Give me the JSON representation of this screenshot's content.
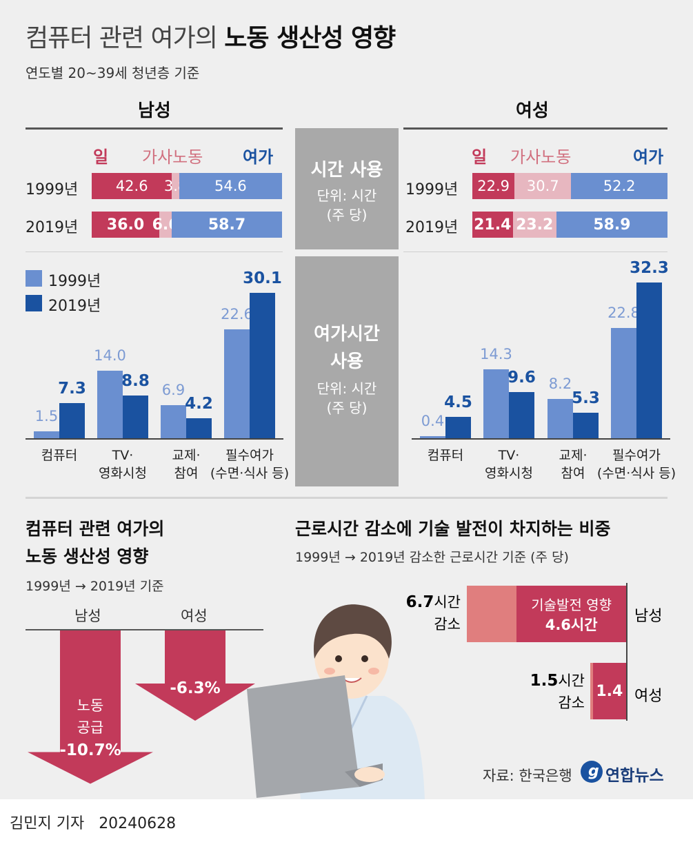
{
  "header": {
    "title_light": "컴퓨터 관련 여가의 ",
    "title_bold": "노동 생산성 영향",
    "subtitle": "연도별 20~39세 청년층 기준"
  },
  "columns": {
    "male": "남성",
    "female": "여성"
  },
  "bands": {
    "time_title": "시간 사용",
    "time_unit1": "단위: 시간",
    "time_unit2": "(주 당)",
    "leisure_title1": "여가시간",
    "leisure_title2": "사용",
    "leisure_unit1": "단위: 시간",
    "leisure_unit2": "(주 당)"
  },
  "colors": {
    "work": "#c23a5a",
    "housework": "#e7b7c0",
    "leisure": "#6a8fd0",
    "y1999": "#6a8fd0",
    "y2019": "#1a52a0",
    "arrow": "#c23a5a",
    "tech": "#c23a5a",
    "tech_rest": "#e07e7e"
  },
  "chart_data": [
    {
      "type": "bar",
      "stacked": true,
      "orientation": "horizontal",
      "panel": "남성",
      "legend": [
        "일",
        "가사노동",
        "여가"
      ],
      "categories": [
        "1999년",
        "2019년"
      ],
      "series": [
        {
          "name": "일",
          "values": [
            42.6,
            36.0
          ]
        },
        {
          "name": "가사노동",
          "values": [
            3.8,
            6.6
          ]
        },
        {
          "name": "여가",
          "values": [
            54.6,
            58.7
          ]
        }
      ]
    },
    {
      "type": "bar",
      "stacked": true,
      "orientation": "horizontal",
      "panel": "여성",
      "legend": [
        "일",
        "가사노동",
        "여가"
      ],
      "categories": [
        "1999년",
        "2019년"
      ],
      "series": [
        {
          "name": "일",
          "values": [
            22.9,
            21.4
          ]
        },
        {
          "name": "가사노동",
          "values": [
            30.7,
            23.2
          ]
        },
        {
          "name": "여가",
          "values": [
            52.2,
            58.9
          ]
        }
      ]
    },
    {
      "type": "bar",
      "panel": "남성",
      "categories": [
        "컴퓨터",
        "TV·\n영화시청",
        "교제·\n참여",
        "필수여가\n(수면·식사 등)"
      ],
      "series": [
        {
          "name": "1999년",
          "values": [
            1.5,
            14.0,
            6.9,
            22.6
          ],
          "labels": [
            "1.5",
            "14.0",
            "6.9",
            "22.6"
          ]
        },
        {
          "name": "2019년",
          "values": [
            7.3,
            8.8,
            4.2,
            30.1
          ],
          "labels": [
            "7.3",
            "8.8",
            "4.2",
            "30.1"
          ]
        }
      ]
    },
    {
      "type": "bar",
      "panel": "여성",
      "categories": [
        "컴퓨터",
        "TV·\n영화시청",
        "교제·\n참여",
        "필수여가\n(수면·식사 등)"
      ],
      "series": [
        {
          "name": "1999년",
          "values": [
            0.4,
            14.3,
            8.2,
            22.8
          ],
          "labels": [
            "0.4",
            "14.3",
            "8.2",
            "22.8"
          ]
        },
        {
          "name": "2019년",
          "values": [
            4.5,
            9.6,
            5.3,
            32.3
          ],
          "labels": [
            "4.5",
            "9.6",
            "5.3",
            "32.3"
          ]
        }
      ]
    }
  ],
  "productivity": {
    "title1": "컴퓨터 관련 여가의",
    "title2": "노동 생산성 영향",
    "subtitle": "1999년 → 2019년 기준",
    "male_label": "남성",
    "female_label": "여성",
    "male_text1": "노동",
    "male_text2": "공급",
    "male_value": -10.7,
    "male_value_text": "-10.7%",
    "female_value": -6.3,
    "female_value_text": "-6.3%"
  },
  "tech_share": {
    "title": "근로시간 감소에 기술 발전이 차지하는 비중",
    "subtitle": "1999년 → 2019년 감소한 근로시간 기준 (주 당)",
    "male": {
      "label": "남성",
      "total": 6.7,
      "total_num": "6.7",
      "total_unit": "시간",
      "total_suffix": "감소",
      "tech": 4.6,
      "tech_label": "기술발전 영향",
      "tech_text": "4.6시간"
    },
    "female": {
      "label": "여성",
      "total": 1.5,
      "total_num": "1.5",
      "total_unit": "시간",
      "total_suffix": "감소",
      "tech": 1.4,
      "tech_text": "1.4"
    }
  },
  "footer": {
    "source": "자료: 한국은행",
    "logo": "연합뉴스",
    "byline": "김민지 기자",
    "date": "20240628"
  }
}
